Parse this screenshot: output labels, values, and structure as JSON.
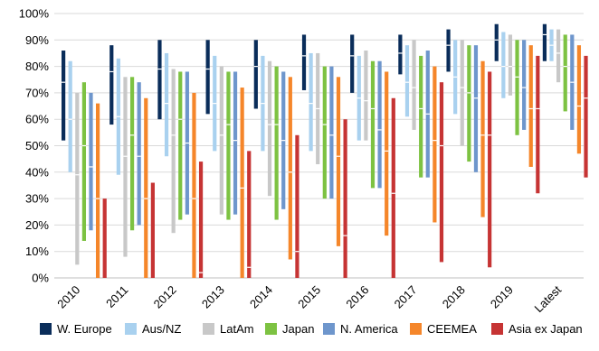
{
  "chart_data": {
    "type": "range-bar",
    "title": "",
    "xlabel": "",
    "ylabel": "",
    "ylim": [
      0,
      100
    ],
    "yticks": [
      "0%",
      "10%",
      "20%",
      "30%",
      "40%",
      "50%",
      "60%",
      "70%",
      "80%",
      "90%",
      "100%"
    ],
    "y_tick_values": [
      0,
      10,
      20,
      30,
      40,
      50,
      60,
      70,
      80,
      90,
      100
    ],
    "grid": true,
    "legend_position": "bottom",
    "categories": [
      "2010",
      "2011",
      "2012",
      "2013",
      "2014",
      "2015",
      "2016",
      "2017",
      "2018",
      "2019",
      "Latest"
    ],
    "series": [
      {
        "name": "W. Europe",
        "color": "#0a2d5a",
        "ranges": [
          [
            52,
            86,
            74
          ],
          [
            58,
            88,
            78
          ],
          [
            60,
            90,
            79
          ],
          [
            62,
            90,
            79
          ],
          [
            64,
            90,
            80
          ],
          [
            71,
            92,
            84
          ],
          [
            70,
            92,
            84
          ],
          [
            77,
            92,
            85
          ],
          [
            78,
            94,
            88
          ],
          [
            82,
            96,
            90
          ],
          [
            82,
            96,
            92
          ]
        ]
      },
      {
        "name": "Aus/NZ",
        "color": "#a9d1ef",
        "ranges": [
          [
            40,
            82,
            60
          ],
          [
            39,
            83,
            61
          ],
          [
            46,
            85,
            66
          ],
          [
            48,
            84,
            66
          ],
          [
            48,
            84,
            66
          ],
          [
            48,
            85,
            66
          ],
          [
            52,
            84,
            68
          ],
          [
            61,
            88,
            74
          ],
          [
            62,
            90,
            76
          ],
          [
            68,
            93,
            80
          ],
          [
            82,
            94,
            88
          ]
        ]
      },
      {
        "name": "LatAm",
        "color": "#c8c8c8",
        "ranges": [
          [
            5,
            70,
            39
          ],
          [
            8,
            76,
            46
          ],
          [
            17,
            79,
            54
          ],
          [
            24,
            80,
            54
          ],
          [
            31,
            82,
            58
          ],
          [
            43,
            85,
            64
          ],
          [
            52,
            86,
            67
          ],
          [
            56,
            90,
            72
          ],
          [
            50,
            90,
            72
          ],
          [
            69,
            92,
            80
          ],
          [
            74,
            94,
            85
          ]
        ]
      },
      {
        "name": "Japan",
        "color": "#7dc242",
        "ranges": [
          [
            14,
            74,
            50
          ],
          [
            18,
            76,
            54
          ],
          [
            22,
            78,
            60
          ],
          [
            22,
            78,
            58
          ],
          [
            22,
            80,
            58
          ],
          [
            30,
            80,
            58
          ],
          [
            34,
            82,
            64
          ],
          [
            38,
            84,
            64
          ],
          [
            44,
            88,
            70
          ],
          [
            54,
            90,
            76
          ],
          [
            63,
            92,
            80
          ]
        ]
      },
      {
        "name": "N. America",
        "color": "#6e96cc",
        "ranges": [
          [
            18,
            70,
            42
          ],
          [
            20,
            74,
            46
          ],
          [
            24,
            78,
            51
          ],
          [
            24,
            78,
            52
          ],
          [
            26,
            78,
            52
          ],
          [
            30,
            80,
            54
          ],
          [
            34,
            82,
            56
          ],
          [
            38,
            86,
            62
          ],
          [
            40,
            88,
            68
          ],
          [
            56,
            90,
            72
          ],
          [
            56,
            92,
            74
          ]
        ]
      },
      {
        "name": "CEEMEA",
        "color": "#f5862a",
        "ranges": [
          [
            0,
            66,
            30
          ],
          [
            0,
            68,
            30
          ],
          [
            0,
            70,
            30
          ],
          [
            0,
            72,
            34
          ],
          [
            7,
            76,
            40
          ],
          [
            12,
            76,
            46
          ],
          [
            16,
            78,
            48
          ],
          [
            21,
            80,
            52
          ],
          [
            23,
            82,
            54
          ],
          [
            42,
            88,
            64
          ],
          [
            47,
            88,
            65
          ]
        ]
      },
      {
        "name": "Asia ex Japan",
        "color": "#c63434",
        "ranges": [
          [
            0,
            30,
            0
          ],
          [
            0,
            36,
            0
          ],
          [
            0,
            44,
            2
          ],
          [
            0,
            48,
            4
          ],
          [
            0,
            54,
            10
          ],
          [
            0,
            60,
            16
          ],
          [
            0,
            68,
            32
          ],
          [
            6,
            74,
            50
          ],
          [
            4,
            78,
            54
          ],
          [
            32,
            84,
            64
          ],
          [
            38,
            84,
            68
          ]
        ]
      }
    ]
  }
}
